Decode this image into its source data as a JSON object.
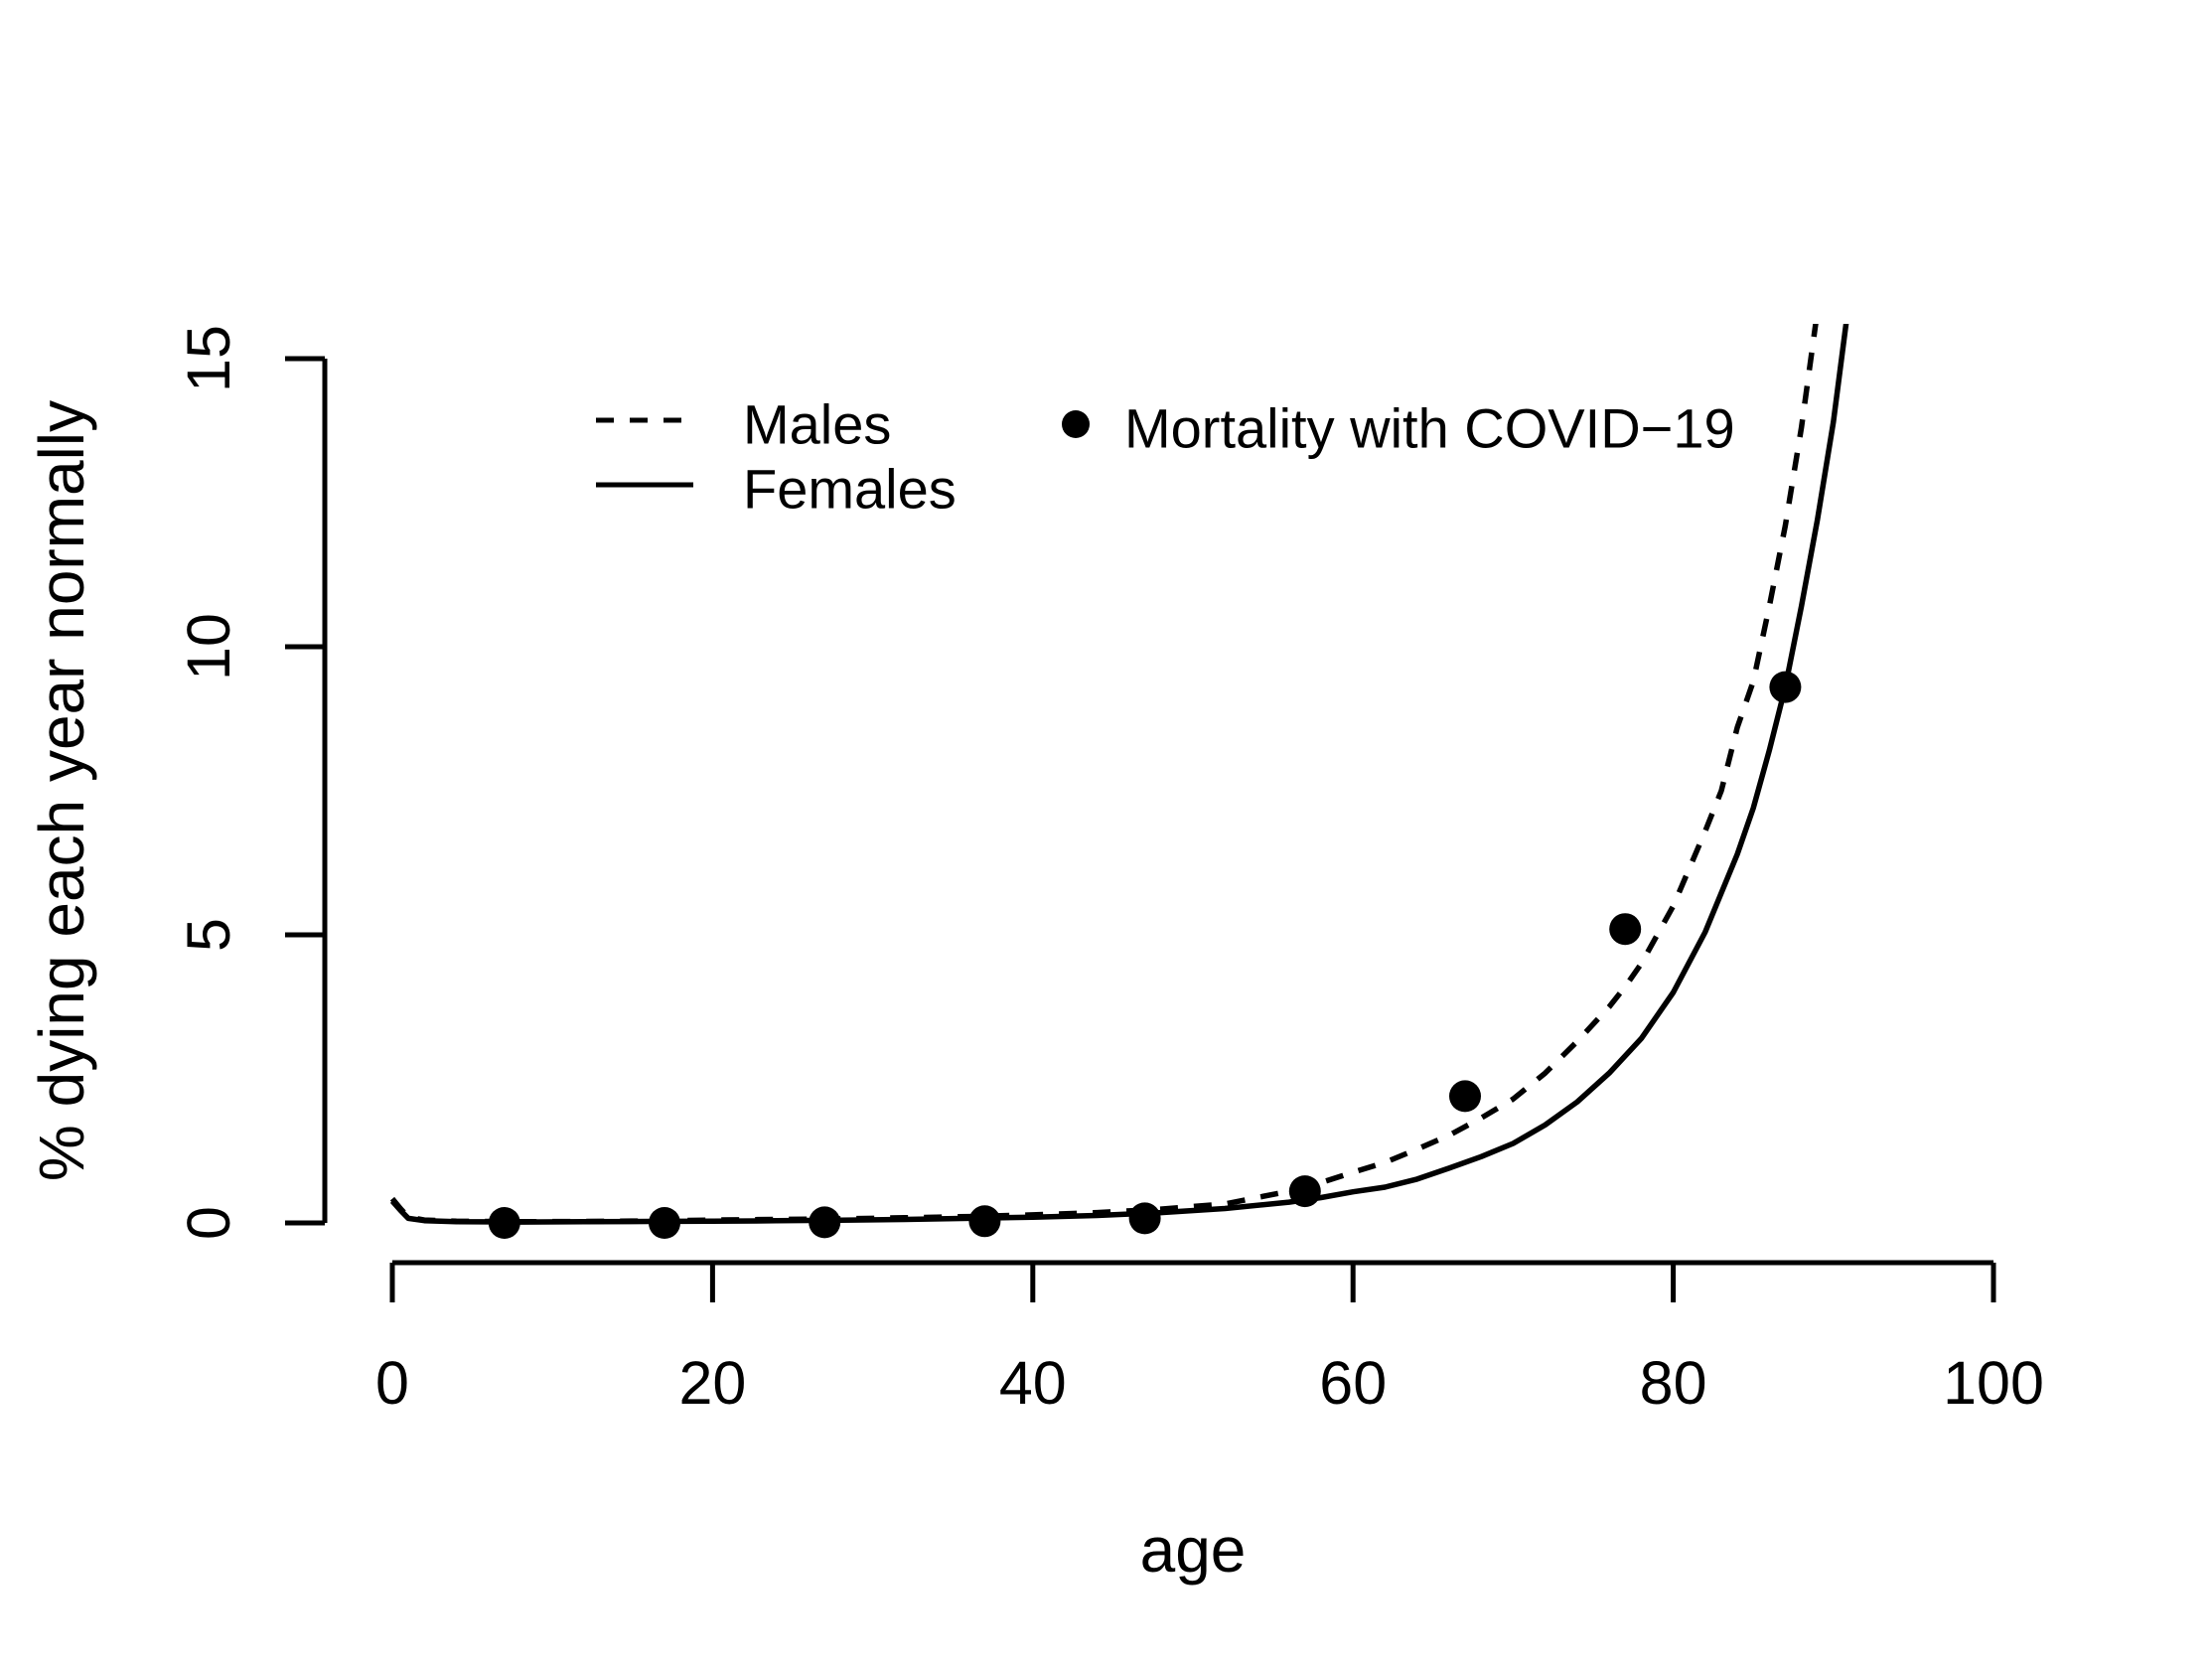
{
  "figure": {
    "background": "#ffffff",
    "foreground": "#000000"
  },
  "chart_data": {
    "type": "line",
    "title": "",
    "xlabel": "age",
    "ylabel": "% dying each year normally",
    "xlim": [
      -4,
      104
    ],
    "ylim": [
      -0.6,
      15.6
    ],
    "x_ticks": [
      0,
      20,
      40,
      60,
      80,
      100
    ],
    "y_ticks": [
      0,
      5,
      10,
      15
    ],
    "grid": false,
    "legend_position": "top-left-inside",
    "series": [
      {
        "name": "Males",
        "type": "line",
        "linestyle": "dashed",
        "color": "#000000",
        "points": [
          [
            0,
            0.42
          ],
          [
            0.5,
            0.25
          ],
          [
            1,
            0.1
          ],
          [
            2,
            0.05
          ],
          [
            4,
            0.03
          ],
          [
            8,
            0.02
          ],
          [
            12,
            0.025
          ],
          [
            16,
            0.035
          ],
          [
            20,
            0.05
          ],
          [
            24,
            0.06
          ],
          [
            28,
            0.07
          ],
          [
            32,
            0.09
          ],
          [
            36,
            0.11
          ],
          [
            40,
            0.14
          ],
          [
            44,
            0.18
          ],
          [
            48,
            0.24
          ],
          [
            52,
            0.33
          ],
          [
            56,
            0.55
          ],
          [
            58,
            0.7
          ],
          [
            60,
            0.88
          ],
          [
            62,
            1.05
          ],
          [
            64,
            1.28
          ],
          [
            66,
            1.52
          ],
          [
            68,
            1.82
          ],
          [
            70,
            2.15
          ],
          [
            72,
            2.6
          ],
          [
            74,
            3.15
          ],
          [
            76,
            3.75
          ],
          [
            77,
            4.1
          ],
          [
            78,
            4.5
          ],
          [
            80,
            5.5
          ],
          [
            82,
            6.8
          ],
          [
            83,
            7.5
          ],
          [
            84,
            8.6
          ],
          [
            85,
            9.4
          ],
          [
            86,
            10.7
          ],
          [
            87,
            12.1
          ],
          [
            88,
            13.8
          ],
          [
            88.9,
            15.62
          ]
        ]
      },
      {
        "name": "Females",
        "type": "line",
        "linestyle": "solid",
        "color": "#000000",
        "points": [
          [
            0,
            0.38
          ],
          [
            0.5,
            0.22
          ],
          [
            1,
            0.08
          ],
          [
            2,
            0.04
          ],
          [
            4,
            0.02
          ],
          [
            8,
            0.015
          ],
          [
            12,
            0.02
          ],
          [
            16,
            0.025
          ],
          [
            20,
            0.03
          ],
          [
            24,
            0.038
          ],
          [
            28,
            0.048
          ],
          [
            32,
            0.06
          ],
          [
            36,
            0.08
          ],
          [
            40,
            0.1
          ],
          [
            44,
            0.13
          ],
          [
            48,
            0.18
          ],
          [
            52,
            0.25
          ],
          [
            56,
            0.36
          ],
          [
            58,
            0.44
          ],
          [
            60,
            0.54
          ],
          [
            62,
            0.62
          ],
          [
            64,
            0.76
          ],
          [
            66,
            0.95
          ],
          [
            68,
            1.15
          ],
          [
            70,
            1.38
          ],
          [
            72,
            1.7
          ],
          [
            74,
            2.1
          ],
          [
            76,
            2.6
          ],
          [
            78,
            3.2
          ],
          [
            80,
            4.0
          ],
          [
            82,
            5.05
          ],
          [
            84,
            6.4
          ],
          [
            85,
            7.2
          ],
          [
            86,
            8.2
          ],
          [
            87,
            9.3
          ],
          [
            88,
            10.7
          ],
          [
            89,
            12.2
          ],
          [
            90,
            13.9
          ],
          [
            90.8,
            15.62
          ]
        ]
      },
      {
        "name": "Mortality with COVID−19",
        "type": "scatter",
        "marker": "filled-circle",
        "color": "#000000",
        "points": [
          [
            7,
            0
          ],
          [
            17,
            0
          ],
          [
            27,
            0.01
          ],
          [
            37,
            0.03
          ],
          [
            47,
            0.08
          ],
          [
            57,
            0.55
          ],
          [
            67,
            2.2
          ],
          [
            77,
            5.1
          ],
          [
            87,
            9.3
          ]
        ]
      }
    ]
  }
}
